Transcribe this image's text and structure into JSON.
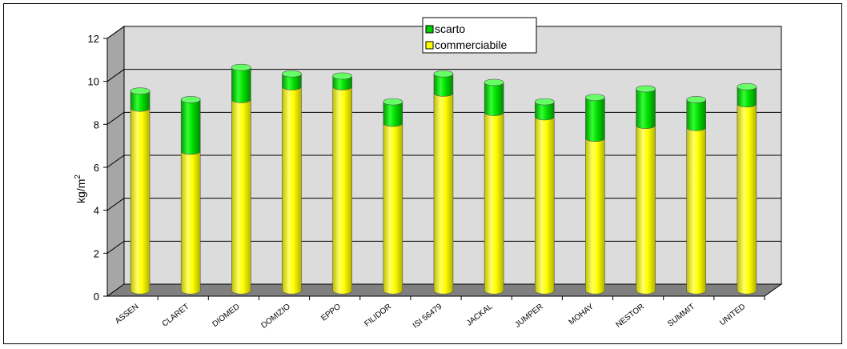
{
  "chart_data": {
    "type": "bar",
    "stacked": true,
    "categories": [
      "ASSEN",
      "CLARET",
      "DIOMED",
      "DOMIZIO",
      "EPPO",
      "FILIDOR",
      "ISI 56479",
      "JACKAL",
      "JUMPER",
      "MOHAY",
      "NESTOR",
      "SUMMIT",
      "UNITED"
    ],
    "series": [
      {
        "name": "commerciabile",
        "color": "#ffff00",
        "values": [
          8.5,
          6.5,
          8.9,
          9.5,
          9.5,
          7.8,
          9.2,
          8.3,
          8.1,
          7.1,
          7.7,
          7.6,
          8.7
        ]
      },
      {
        "name": "scarto",
        "color": "#00cc00",
        "values": [
          0.8,
          2.4,
          1.5,
          0.6,
          0.5,
          1.0,
          0.9,
          1.4,
          0.7,
          1.9,
          1.7,
          1.3,
          0.8
        ]
      }
    ],
    "ylabel": "kg/m",
    "ylabel_superscript": "2",
    "ylim": [
      0,
      12
    ],
    "yticks": [
      "0",
      "2",
      "4",
      "6",
      "8",
      "10",
      "12"
    ],
    "grid": true,
    "legend": {
      "placement": "top-center",
      "entries": [
        "scarto",
        "commerciabile"
      ]
    },
    "style": {
      "wall_color": "#dcdcdc",
      "side_wall_color": "#a6a6a6",
      "floor_color": "#808080"
    }
  }
}
